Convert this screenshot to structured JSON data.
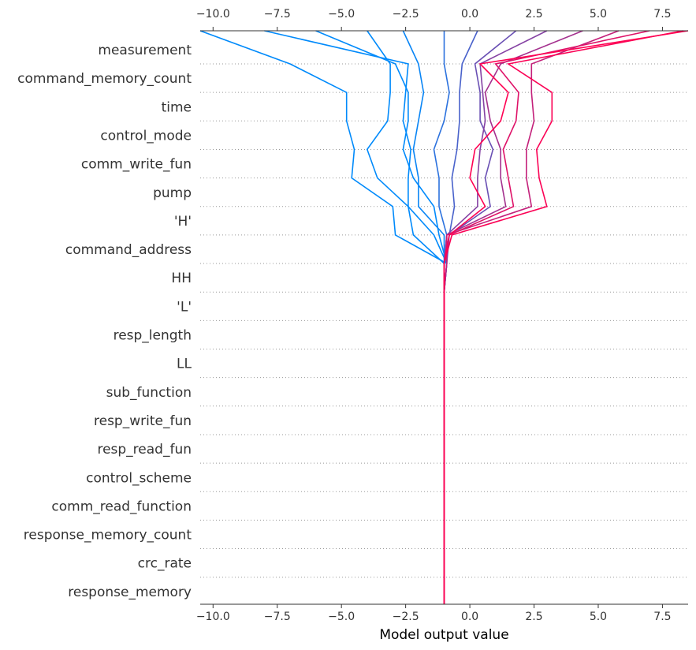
{
  "chart_data": {
    "type": "line",
    "xlabel": "Model output value",
    "xlim": [
      -10.5,
      8.5
    ],
    "xticks": [
      -10.0,
      -7.5,
      -5.0,
      -2.5,
      0.0,
      2.5,
      5.0,
      7.5
    ],
    "xtick_labels": [
      "−10.0",
      "−7.5",
      "−5.0",
      "−2.5",
      "0.0",
      "2.5",
      "5.0",
      "7.5"
    ],
    "base_value": -1.0,
    "features": [
      "measurement",
      "command_memory_count",
      "time",
      "control_mode",
      "comm_write_fun",
      "pump",
      "'H'",
      "command_address",
      "HH",
      "'L'",
      "resp_length",
      "LL",
      "sub_function",
      "resp_write_fun",
      "resp_read_fun",
      "control_scheme",
      "comm_read_function",
      "response_memory_count",
      "crc_rate",
      "response_memory"
    ],
    "grid": "dotted horizontal lines between features",
    "colormap": [
      "#008afb",
      "#ff0052"
    ],
    "samples": [
      {
        "path": [
          -1.0,
          -1.0,
          -1.0,
          -1.0,
          -1.0,
          -1.0,
          -1.0,
          -1.0,
          -1.0,
          -1.0,
          -1.0,
          -0.9,
          -2.9,
          -3.0,
          -4.6,
          -4.5,
          -4.8,
          -4.8,
          -7.0,
          -10.5
        ]
      },
      {
        "path": [
          -1.0,
          -1.0,
          -1.0,
          -1.0,
          -1.0,
          -1.0,
          -1.0,
          -1.0,
          -1.0,
          -1.0,
          -1.0,
          -1.0,
          -2.2,
          -2.4,
          -2.4,
          -2.3,
          -2.6,
          -2.5,
          -2.4,
          -8.0
        ]
      },
      {
        "path": [
          -1.0,
          -1.0,
          -1.0,
          -1.0,
          -1.0,
          -1.0,
          -1.0,
          -1.0,
          -1.0,
          -1.0,
          -1.0,
          -0.9,
          -1.2,
          -1.4,
          -2.2,
          -2.6,
          -2.4,
          -2.4,
          -2.9,
          -6.0
        ]
      },
      {
        "path": [
          -1.0,
          -1.0,
          -1.0,
          -1.0,
          -1.0,
          -1.0,
          -1.0,
          -1.0,
          -1.0,
          -1.0,
          -1.0,
          -0.9,
          -1.4,
          -2.4,
          -3.6,
          -4.0,
          -3.2,
          -3.1,
          -3.1,
          -4.0
        ]
      },
      {
        "path": [
          -1.0,
          -1.0,
          -1.0,
          -1.0,
          -1.0,
          -1.0,
          -1.0,
          -1.0,
          -1.0,
          -1.0,
          -1.0,
          -1.0,
          -1.0,
          -2.0,
          -2.0,
          -2.2,
          -2.0,
          -1.8,
          -2.0,
          -2.6
        ]
      },
      {
        "path": [
          -1.0,
          -1.0,
          -1.0,
          -1.0,
          -1.0,
          -1.0,
          -1.0,
          -1.0,
          -1.0,
          -1.0,
          -1.0,
          -1.0,
          -0.9,
          -1.2,
          -1.2,
          -1.4,
          -1.0,
          -0.8,
          -1.0,
          -1.0
        ]
      },
      {
        "path": [
          -1.0,
          -1.0,
          -1.0,
          -1.0,
          -1.0,
          -1.0,
          -1.0,
          -1.0,
          -1.0,
          -1.0,
          -1.0,
          -1.0,
          -0.8,
          -0.6,
          -0.7,
          -0.5,
          -0.4,
          -0.4,
          -0.3,
          0.3
        ]
      },
      {
        "path": [
          -1.0,
          -1.0,
          -1.0,
          -1.0,
          -1.0,
          -1.0,
          -1.0,
          -1.0,
          -1.0,
          -1.0,
          -1.0,
          -0.9,
          -0.8,
          0.8,
          0.6,
          0.9,
          0.4,
          0.4,
          0.2,
          1.8
        ]
      },
      {
        "path": [
          -1.0,
          -1.0,
          -1.0,
          -1.0,
          -1.0,
          -1.0,
          -1.0,
          -1.0,
          -1.0,
          -1.0,
          -1.0,
          -1.0,
          -0.9,
          0.3,
          0.3,
          0.4,
          0.6,
          0.5,
          0.4,
          3.0
        ]
      },
      {
        "path": [
          -1.0,
          -1.0,
          -1.0,
          -1.0,
          -1.0,
          -1.0,
          -1.0,
          -1.0,
          -1.0,
          -1.0,
          -1.0,
          -1.0,
          -0.9,
          1.4,
          1.2,
          1.2,
          0.8,
          0.6,
          1.2,
          4.4
        ]
      },
      {
        "path": [
          -1.0,
          -1.0,
          -1.0,
          -1.0,
          -1.0,
          -1.0,
          -1.0,
          -1.0,
          -1.0,
          -1.0,
          -1.0,
          -0.9,
          -0.9,
          2.4,
          2.2,
          2.2,
          2.5,
          2.4,
          2.4,
          5.8
        ]
      },
      {
        "path": [
          -1.0,
          -1.0,
          -1.0,
          -1.0,
          -1.0,
          -1.0,
          -1.0,
          -1.0,
          -1.0,
          -1.0,
          -1.0,
          -1.0,
          -0.8,
          1.7,
          1.5,
          1.3,
          1.8,
          1.9,
          1.0,
          7.0
        ]
      },
      {
        "path": [
          -1.0,
          -1.0,
          -1.0,
          -1.0,
          -1.0,
          -1.0,
          -1.0,
          -1.0,
          -1.0,
          -1.0,
          -1.0,
          -1.0,
          -0.7,
          3.0,
          2.7,
          2.6,
          3.2,
          3.2,
          1.5,
          8.3
        ]
      },
      {
        "path": [
          -1.0,
          -1.0,
          -1.0,
          -1.0,
          -1.0,
          -1.0,
          -1.0,
          -1.0,
          -1.0,
          -1.0,
          -1.0,
          -1.0,
          -0.8,
          0.6,
          0.0,
          0.2,
          1.2,
          1.5,
          0.4,
          8.5
        ]
      }
    ]
  }
}
